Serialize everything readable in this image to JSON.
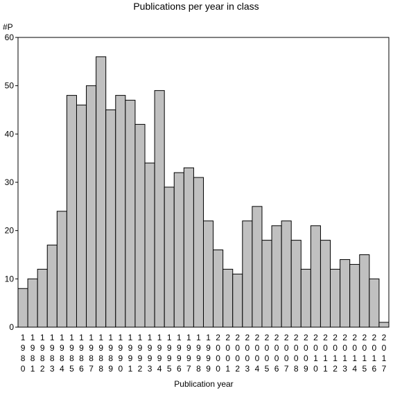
{
  "chart_data": {
    "type": "bar",
    "title": "Publications per year in class",
    "ylabel": "#P",
    "xlabel": "Publication year",
    "ylim": [
      0,
      60
    ],
    "yticks": [
      0,
      10,
      20,
      30,
      40,
      50,
      60
    ],
    "grid": false,
    "bar_color": "#c0c0c0",
    "categories": [
      "1980",
      "1981",
      "1982",
      "1983",
      "1984",
      "1985",
      "1986",
      "1987",
      "1988",
      "1989",
      "1990",
      "1991",
      "1992",
      "1993",
      "1994",
      "1995",
      "1996",
      "1997",
      "1998",
      "1999",
      "2000",
      "2001",
      "2002",
      "2003",
      "2004",
      "2005",
      "2006",
      "2007",
      "2008",
      "2009",
      "2010",
      "2011",
      "2012",
      "2013",
      "2014",
      "2015",
      "2016",
      "2017"
    ],
    "values": [
      8,
      10,
      12,
      17,
      24,
      48,
      46,
      50,
      56,
      45,
      48,
      47,
      42,
      34,
      49,
      29,
      32,
      33,
      31,
      22,
      16,
      12,
      11,
      22,
      25,
      18,
      21,
      22,
      18,
      12,
      21,
      18,
      12,
      14,
      13,
      15,
      10,
      1
    ]
  }
}
